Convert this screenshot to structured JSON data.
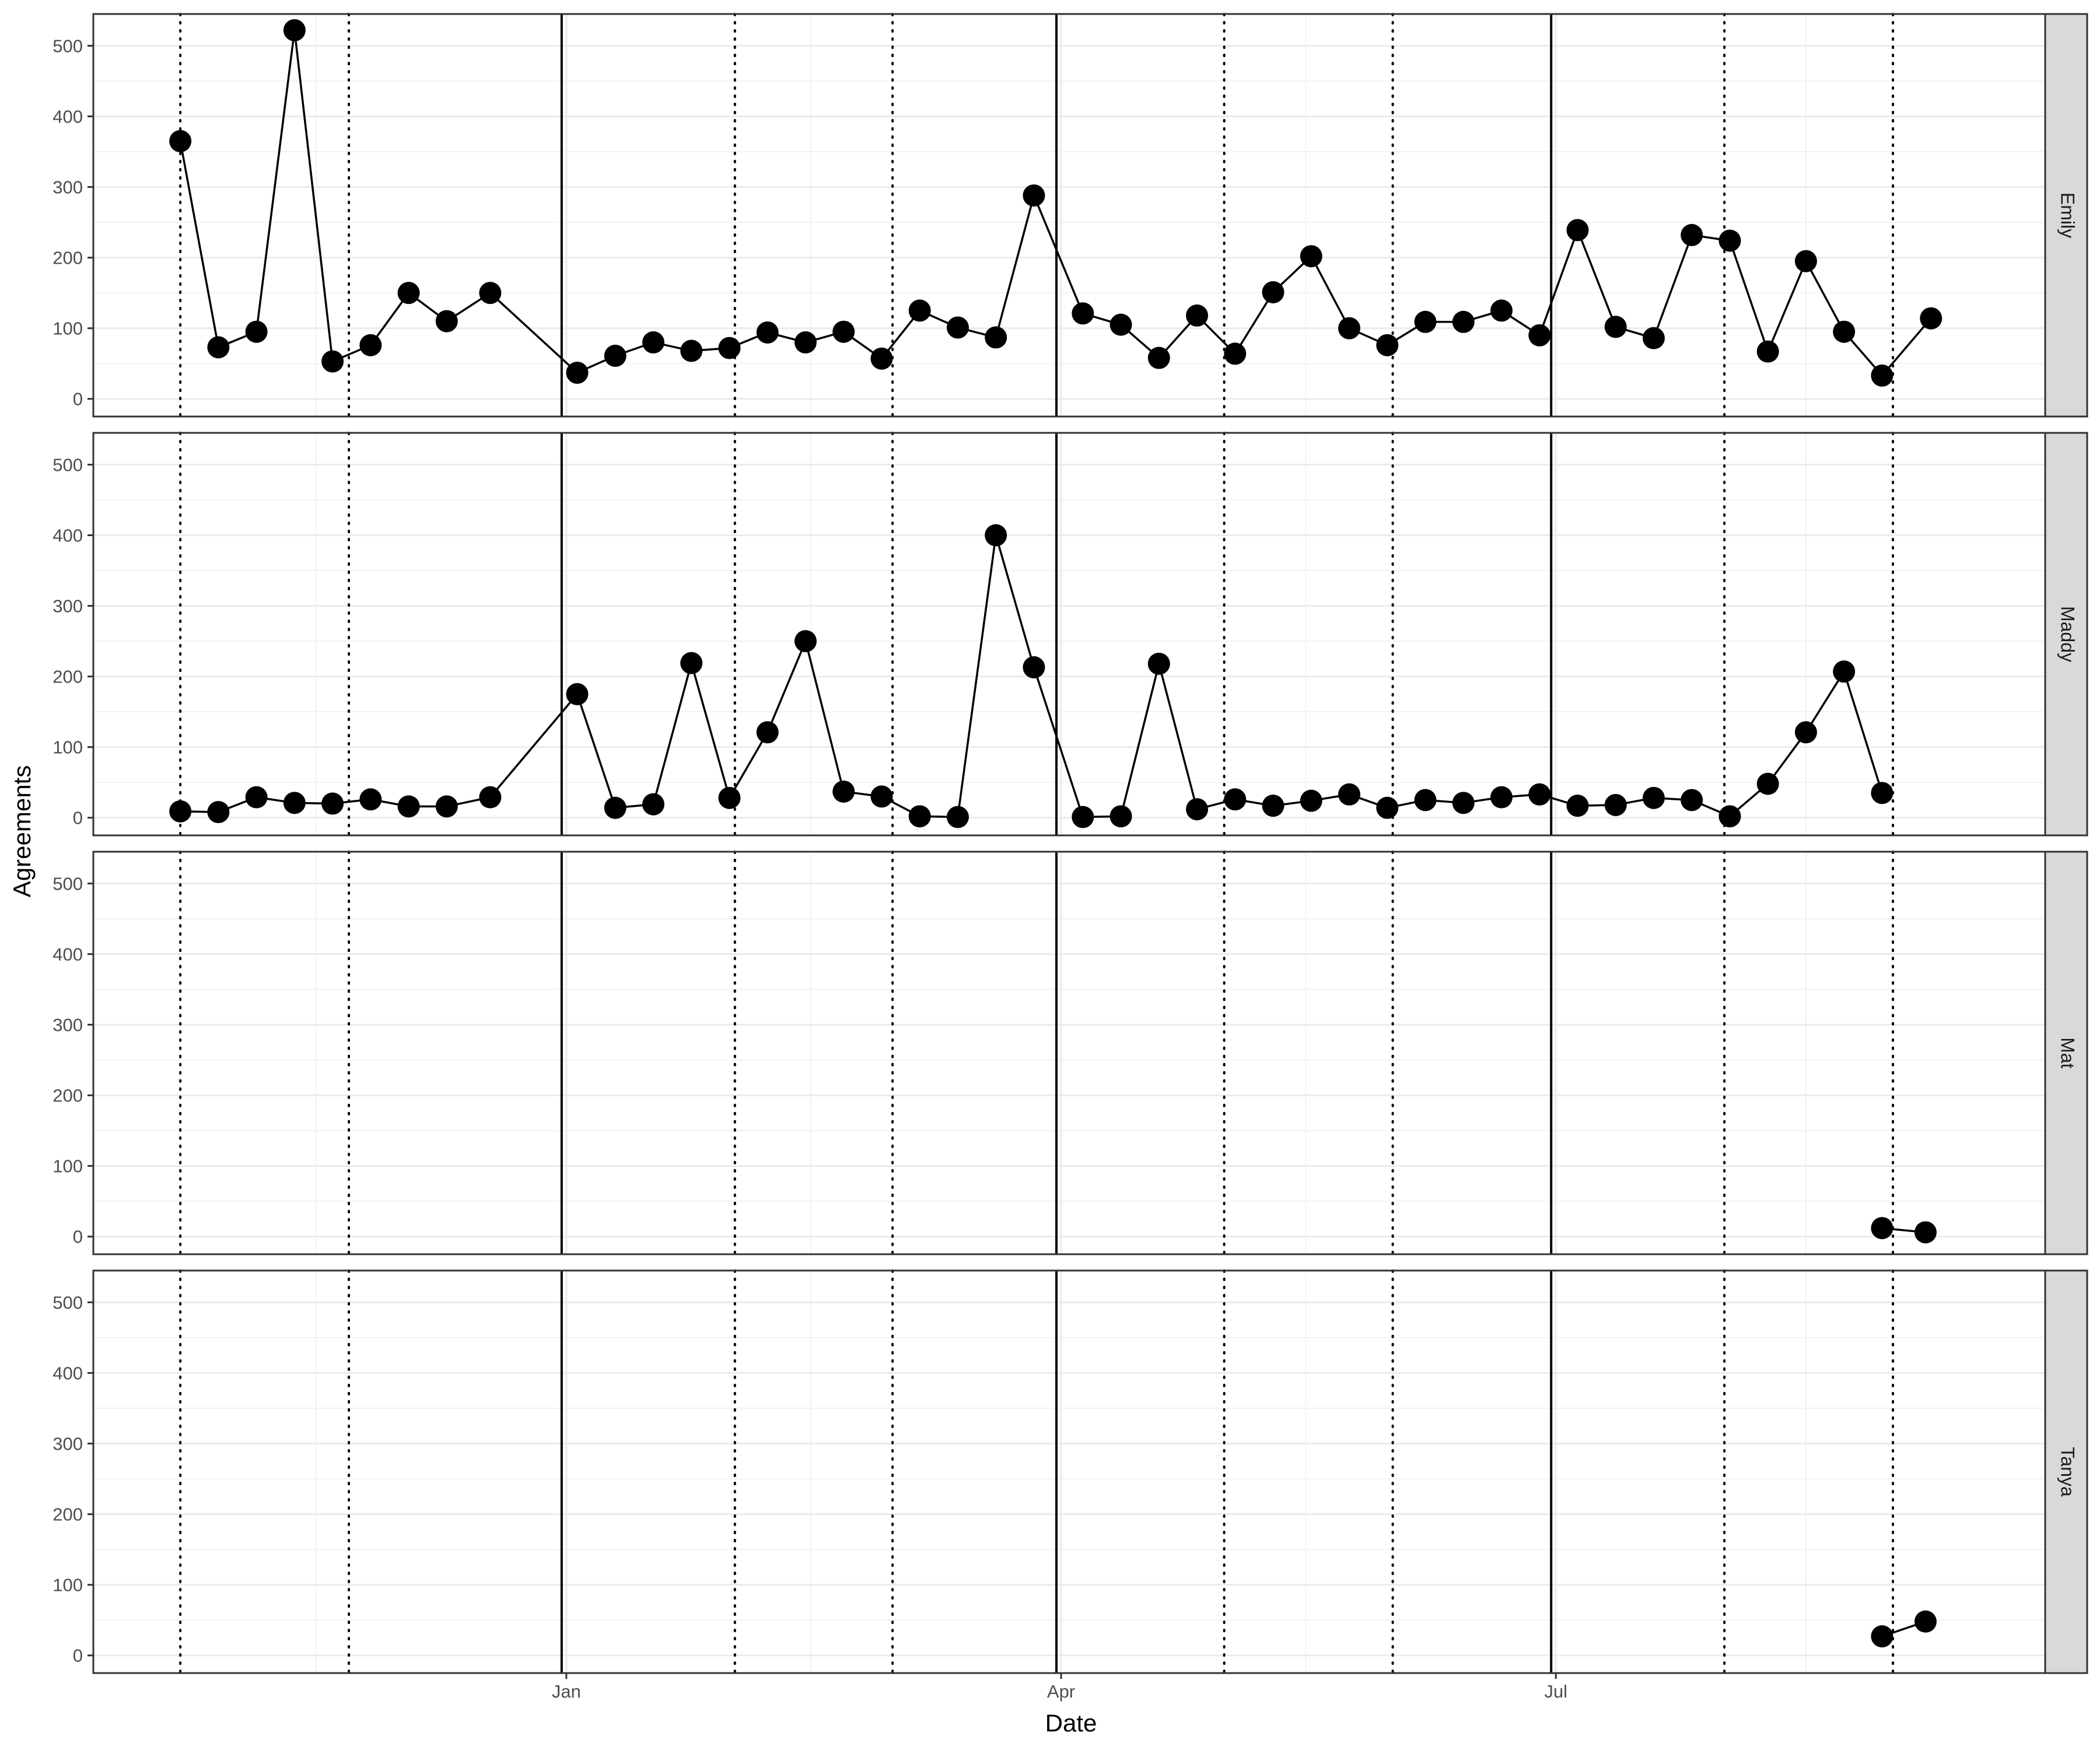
{
  "chart_data": {
    "type": "line",
    "xlabel": "Date",
    "ylabel": "Agreements",
    "ylim": [
      -25,
      545
    ],
    "y_ticks": [
      0,
      100,
      200,
      300,
      400,
      500
    ],
    "xlim": [
      "2019-10-06",
      "2020-09-29"
    ],
    "x_ticks": [
      {
        "date": "2020-01-01",
        "label": "Jan"
      },
      {
        "date": "2020-04-01",
        "label": "Apr"
      },
      {
        "date": "2020-07-01",
        "label": "Jul"
      }
    ],
    "quarter_lines": [
      "2020-01-01",
      "2020-04-01",
      "2020-07-01"
    ],
    "dotted_lines": [
      "2019-10-22",
      "2019-11-22",
      "2020-02-01",
      "2020-03-01",
      "2020-05-01",
      "2020-06-01",
      "2020-08-01",
      "2020-09-01"
    ],
    "grid": true,
    "facet_direction": "rows",
    "line_color": "#000000",
    "point_color": "#000000",
    "strip_fill": "#d9d9d9",
    "panels": [
      {
        "strip": "Emily",
        "points": [
          [
            "2019-10-22",
            365
          ],
          [
            "2019-10-29",
            73
          ],
          [
            "2019-11-05",
            95
          ],
          [
            "2019-11-12",
            522
          ],
          [
            "2019-11-19",
            53
          ],
          [
            "2019-11-26",
            76
          ],
          [
            "2019-12-03",
            150
          ],
          [
            "2019-12-10",
            110
          ],
          [
            "2019-12-18",
            150
          ],
          [
            "2020-01-03",
            37
          ],
          [
            "2020-01-10",
            61
          ],
          [
            "2020-01-17",
            80
          ],
          [
            "2020-01-24",
            68
          ],
          [
            "2020-01-31",
            72
          ],
          [
            "2020-02-07",
            94
          ],
          [
            "2020-02-14",
            80
          ],
          [
            "2020-02-21",
            95
          ],
          [
            "2020-02-28",
            57
          ],
          [
            "2020-03-06",
            125
          ],
          [
            "2020-03-13",
            101
          ],
          [
            "2020-03-20",
            87
          ],
          [
            "2020-03-27",
            288
          ],
          [
            "2020-04-05",
            121
          ],
          [
            "2020-04-12",
            105
          ],
          [
            "2020-04-19",
            58
          ],
          [
            "2020-04-26",
            118
          ],
          [
            "2020-05-03",
            64
          ],
          [
            "2020-05-10",
            151
          ],
          [
            "2020-05-17",
            202
          ],
          [
            "2020-05-24",
            100
          ],
          [
            "2020-05-31",
            76
          ],
          [
            "2020-06-07",
            109
          ],
          [
            "2020-06-14",
            109
          ],
          [
            "2020-06-21",
            125
          ],
          [
            "2020-06-28",
            90
          ],
          [
            "2020-07-05",
            239
          ],
          [
            "2020-07-12",
            102
          ],
          [
            "2020-07-19",
            86
          ],
          [
            "2020-07-26",
            232
          ],
          [
            "2020-08-02",
            224
          ],
          [
            "2020-08-09",
            67
          ],
          [
            "2020-08-16",
            195
          ],
          [
            "2020-08-23",
            95
          ],
          [
            "2020-08-30",
            33
          ],
          [
            "2020-09-08",
            114
          ]
        ]
      },
      {
        "strip": "Maddy",
        "points": [
          [
            "2019-10-22",
            9
          ],
          [
            "2019-10-29",
            8
          ],
          [
            "2019-11-05",
            29
          ],
          [
            "2019-11-12",
            21
          ],
          [
            "2019-11-19",
            20
          ],
          [
            "2019-11-26",
            26
          ],
          [
            "2019-12-03",
            16
          ],
          [
            "2019-12-10",
            16
          ],
          [
            "2019-12-18",
            29
          ],
          [
            "2020-01-03",
            175
          ],
          [
            "2020-01-10",
            14
          ],
          [
            "2020-01-17",
            19
          ],
          [
            "2020-01-24",
            219
          ],
          [
            "2020-01-31",
            28
          ],
          [
            "2020-02-07",
            121
          ],
          [
            "2020-02-14",
            250
          ],
          [
            "2020-02-21",
            37
          ],
          [
            "2020-02-28",
            30
          ],
          [
            "2020-03-06",
            2
          ],
          [
            "2020-03-13",
            1
          ],
          [
            "2020-03-20",
            400
          ],
          [
            "2020-03-27",
            213
          ],
          [
            "2020-04-05",
            1
          ],
          [
            "2020-04-12",
            2
          ],
          [
            "2020-04-19",
            218
          ],
          [
            "2020-04-26",
            12
          ],
          [
            "2020-05-03",
            26
          ],
          [
            "2020-05-10",
            17
          ],
          [
            "2020-05-17",
            24
          ],
          [
            "2020-05-24",
            33
          ],
          [
            "2020-05-31",
            14
          ],
          [
            "2020-06-07",
            25
          ],
          [
            "2020-06-14",
            21
          ],
          [
            "2020-06-21",
            29
          ],
          [
            "2020-06-28",
            33
          ],
          [
            "2020-07-05",
            17
          ],
          [
            "2020-07-12",
            18
          ],
          [
            "2020-07-19",
            28
          ],
          [
            "2020-07-26",
            25
          ],
          [
            "2020-08-02",
            2
          ],
          [
            "2020-08-09",
            48
          ],
          [
            "2020-08-16",
            121
          ],
          [
            "2020-08-23",
            207
          ],
          [
            "2020-08-30",
            35
          ]
        ]
      },
      {
        "strip": "Mat",
        "points": [
          [
            "2020-08-30",
            12
          ],
          [
            "2020-09-07",
            6
          ]
        ]
      },
      {
        "strip": "Tanya",
        "points": [
          [
            "2020-08-30",
            27
          ],
          [
            "2020-09-07",
            48
          ]
        ]
      }
    ]
  }
}
